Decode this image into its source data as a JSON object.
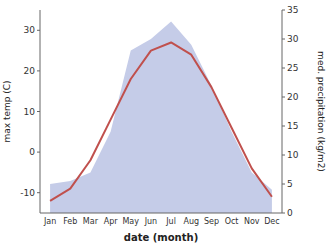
{
  "chart_data": {
    "type": "line",
    "categories": [
      "Jan",
      "Feb",
      "Mar",
      "Apr",
      "May",
      "Jun",
      "Jul",
      "Aug",
      "Sep",
      "Oct",
      "Nov",
      "Dec"
    ],
    "xlabel": "date (month)",
    "ylabel": "max temp (C)",
    "y2label": "med. precipitation (kg/m2)",
    "ylim": [
      -15,
      35
    ],
    "yticks": [
      -10,
      0,
      10,
      20,
      30
    ],
    "y2lim": [
      0,
      35
    ],
    "y2ticks": [
      0,
      5,
      10,
      15,
      20,
      25,
      30,
      35
    ],
    "grid": false,
    "series": [
      {
        "type": "area",
        "axis": "y2",
        "color": "#c5cce8",
        "values": [
          5,
          5.5,
          7,
          14,
          28,
          30,
          33,
          29,
          22,
          14,
          7,
          4
        ]
      },
      {
        "type": "line",
        "color": "#c0504d",
        "values": [
          -12,
          -9,
          -2,
          8,
          18,
          25,
          27,
          24,
          16,
          6,
          -4,
          -11
        ]
      }
    ]
  }
}
